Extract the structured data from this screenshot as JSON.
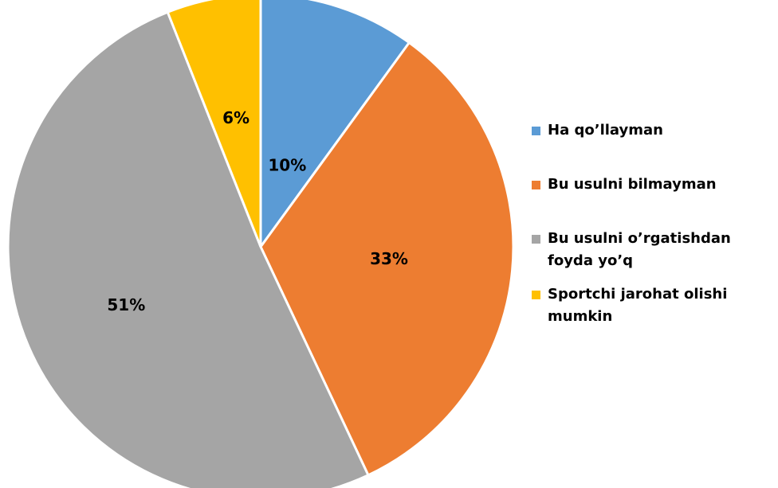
{
  "chart_data": {
    "type": "pie",
    "title": "",
    "start_angle_deg": 0,
    "direction": "clockwise",
    "slices": [
      {
        "name": "Ha qo’llayman",
        "value": 10,
        "label": "10%",
        "color": "#5B9BD5"
      },
      {
        "name": "Bu usulni bilmayman",
        "value": 33,
        "label": "33%",
        "color": "#ED7D31"
      },
      {
        "name": "Bu usulni o’rgatishdan foyda yo’q",
        "value": 51,
        "label": "51%",
        "color": "#A5A5A5"
      },
      {
        "name": "Sportchi jarohat olishi mumkin",
        "value": 6,
        "label": "6%",
        "color": "#FFC000"
      }
    ],
    "legend": {
      "position": "right"
    }
  }
}
